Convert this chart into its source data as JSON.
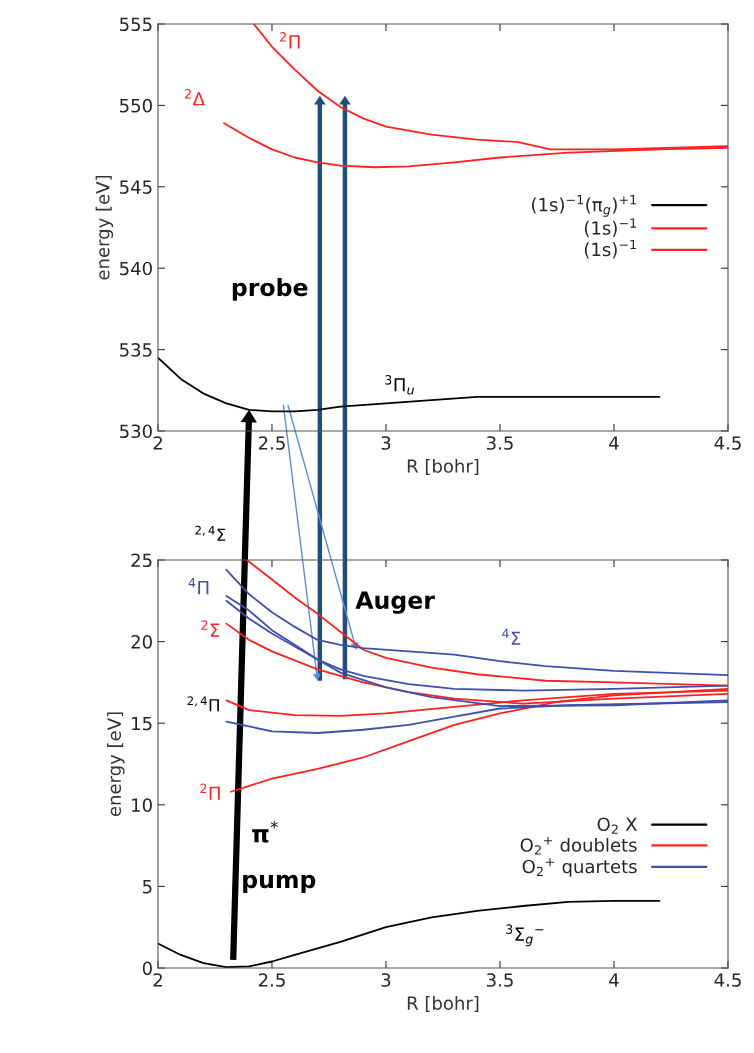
{
  "chart_data": [
    {
      "type": "line",
      "xlabel": "R [bohr]",
      "ylabel": "energy [eV]",
      "xlim": [
        2,
        4.5
      ],
      "ylim": [
        530,
        555
      ],
      "xticks": [
        2,
        2.5,
        3,
        3.5,
        4,
        4.5
      ],
      "yticks": [
        530,
        535,
        540,
        545,
        550,
        555
      ],
      "legend": "center right",
      "series": [
        {
          "name": "(1s)$^{−1}$(π$_{g}$)$^{+1}$",
          "color": "#000000",
          "x": [
            2,
            2.1,
            2.2,
            2.3,
            2.4,
            2.5,
            2.6,
            2.7,
            2.8,
            3.0,
            3.2,
            3.4,
            3.6,
            4.2
          ],
          "values": [
            534.5,
            533.2,
            532.3,
            531.7,
            531.3,
            531.2,
            531.2,
            531.3,
            531.5,
            531.7,
            531.9,
            532.1,
            532.1,
            532.1
          ]
        },
        {
          "name": "(1s)$^{−1}$",
          "color": "#ff2020",
          "x": [
            2.42,
            2.5,
            2.6,
            2.7,
            2.8,
            2.9,
            3.0,
            3.2,
            3.4,
            3.58,
            3.72,
            4.0,
            4.5
          ],
          "values": [
            555,
            553.6,
            552.2,
            550.9,
            549.9,
            549.2,
            548.7,
            548.2,
            547.9,
            547.75,
            547.3,
            547.3,
            547.5
          ]
        },
        {
          "name": "(1s)$^{−1}$",
          "color": "#ff2020",
          "x": [
            2.29,
            2.4,
            2.5,
            2.6,
            2.7,
            2.8,
            2.95,
            3.1,
            3.3,
            3.5,
            3.8,
            4.2,
            4.5
          ],
          "values": [
            548.9,
            548.0,
            547.3,
            546.8,
            546.5,
            546.3,
            546.2,
            546.25,
            546.5,
            546.8,
            547.1,
            547.3,
            547.4
          ]
        }
      ],
      "annotations": [
        "$^{2}$Π",
        "$^{2}$Δ",
        "$^{3}$Π$_{u}$",
        "probe"
      ]
    },
    {
      "type": "line",
      "xlabel": "R [bohr]",
      "ylabel": "energy [eV]",
      "xlim": [
        2,
        4.5
      ],
      "ylim": [
        0,
        25
      ],
      "xticks": [
        2,
        2.5,
        3,
        3.5,
        4,
        4.5
      ],
      "yticks": [
        0,
        5,
        10,
        15,
        20,
        25
      ],
      "legend": "lower right",
      "series": [
        {
          "name": "O$_{2}$ X",
          "color": "#000000",
          "x": [
            2,
            2.1,
            2.2,
            2.3,
            2.4,
            2.5,
            2.6,
            2.8,
            3.0,
            3.2,
            3.4,
            3.6,
            3.8,
            4.0,
            4.2
          ],
          "values": [
            1.5,
            0.8,
            0.3,
            0.05,
            0.1,
            0.4,
            0.8,
            1.6,
            2.5,
            3.1,
            3.5,
            3.8,
            4.05,
            4.12,
            4.12
          ]
        },
        {
          "name": "O$_{2}$$^{+}$ doublets",
          "color": "#ff2020",
          "x": [
            2.32,
            2.5,
            2.7,
            2.9,
            3.1,
            3.3,
            3.5,
            3.75,
            4.0,
            4.5
          ],
          "values": [
            10.8,
            11.6,
            12.2,
            12.9,
            13.9,
            14.9,
            15.6,
            16.3,
            16.7,
            17.1
          ]
        },
        {
          "color": "#ff2020",
          "x": [
            2.39,
            2.5,
            2.6,
            2.7,
            2.8,
            2.9,
            3.0,
            3.2,
            3.4,
            3.7,
            4.0,
            4.5
          ],
          "values": [
            25,
            23.8,
            22.7,
            21.7,
            20.6,
            19.5,
            19.0,
            18.4,
            18.0,
            17.6,
            17.5,
            17.3
          ]
        },
        {
          "color": "#ff2020",
          "x": [
            2.3,
            2.4,
            2.5,
            2.7,
            2.9,
            3.1,
            3.3,
            3.6,
            4.0,
            4.5
          ],
          "values": [
            21.1,
            20.1,
            19.4,
            18.3,
            17.5,
            16.9,
            16.5,
            16.2,
            16.5,
            16.8
          ]
        },
        {
          "color": "#ff2020",
          "x": [
            2.3,
            2.4,
            2.6,
            2.8,
            3.0,
            3.3,
            3.6,
            4.0,
            4.5
          ],
          "values": [
            16.4,
            15.8,
            15.5,
            15.45,
            15.6,
            16.0,
            16.4,
            16.8,
            17.0
          ]
        },
        {
          "name": "O$_{2}$$^{+}$ quartets",
          "color": "#3f4fb0",
          "x": [
            2.3,
            2.4,
            2.5,
            2.6,
            2.7,
            2.8,
            2.9,
            3.1,
            3.3,
            3.5,
            3.7,
            4.0,
            4.5
          ],
          "values": [
            24.4,
            22.9,
            21.8,
            20.9,
            20.1,
            19.8,
            19.6,
            19.4,
            19.2,
            18.8,
            18.5,
            18.2,
            17.95
          ]
        },
        {
          "color": "#3f4fb0",
          "x": [
            2.3,
            2.4,
            2.5,
            2.6,
            2.7,
            2.8,
            3.0,
            3.2,
            3.5,
            4.0,
            4.5
          ],
          "values": [
            22.8,
            21.9,
            20.7,
            19.8,
            18.9,
            18.1,
            17.2,
            16.6,
            16.05,
            16.1,
            16.4
          ]
        },
        {
          "color": "#3f4fb0",
          "x": [
            2.3,
            2.4,
            2.5,
            2.6,
            2.7,
            2.8,
            2.9,
            3.1,
            3.3,
            3.6,
            4.0,
            4.5
          ],
          "values": [
            22.5,
            21.4,
            20.5,
            19.7,
            18.9,
            18.3,
            17.9,
            17.4,
            17.1,
            17.0,
            17.1,
            17.3
          ]
        },
        {
          "color": "#3f4fb0",
          "x": [
            2.3,
            2.4,
            2.5,
            2.7,
            2.9,
            3.1,
            3.3,
            3.5,
            3.8,
            4.5
          ],
          "values": [
            15.1,
            14.8,
            14.5,
            14.4,
            14.6,
            14.9,
            15.4,
            15.9,
            16.1,
            16.3
          ]
        }
      ],
      "annotations": [
        "$^{2,4}$Σ",
        "$^{4}$Π",
        "$^{2}$Σ",
        "$^{2,4}$Π",
        "$^{2}$Π",
        "$^{4}$Σ",
        "$^{3}$Σ$_{g}$$^{−}$",
        "Auger",
        "π$^{*}$",
        "pump"
      ]
    }
  ]
}
